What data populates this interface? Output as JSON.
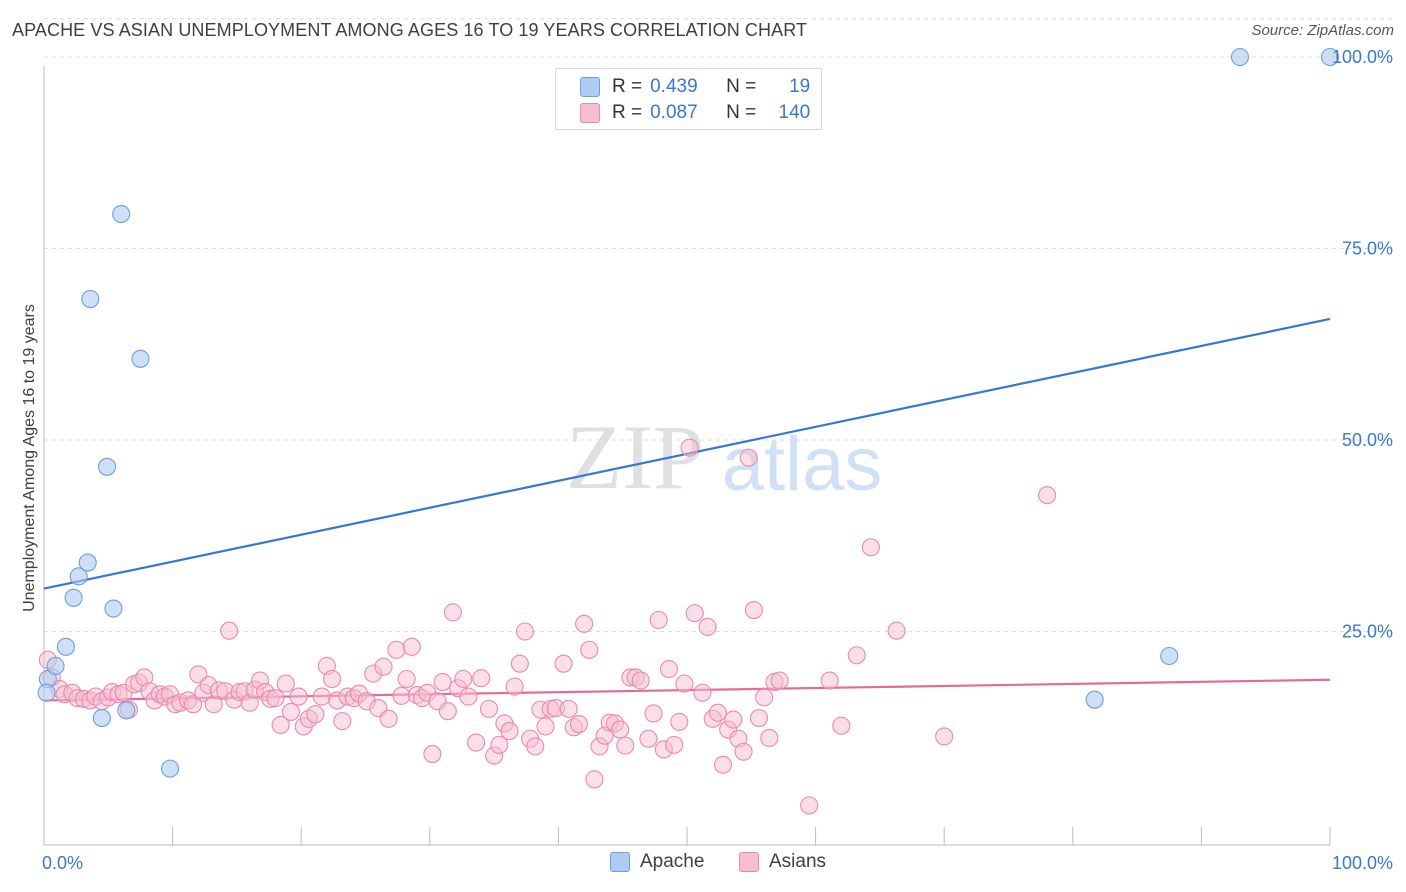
{
  "title": "APACHE VS ASIAN UNEMPLOYMENT AMONG AGES 16 TO 19 YEARS CORRELATION CHART",
  "source": "Source: ZipAtlas.com",
  "watermark": {
    "zip": "ZIP",
    "atlas": "atlas"
  },
  "legend_top": {
    "rows": [
      {
        "r_label": "R =",
        "r_value": "0.439",
        "n_label": "N =",
        "n_value": "19"
      },
      {
        "r_label": "R =",
        "r_value": "0.087",
        "n_label": "N =",
        "n_value": "140"
      }
    ]
  },
  "legend_bottom": {
    "apache": "Apache",
    "asians": "Asians"
  },
  "colors": {
    "apache_fill": "#aecbf2",
    "apache_stroke": "#6d9fdc",
    "apache_line": "#3677d4",
    "asians_fill": "#f7bdd0",
    "asians_stroke": "#e98aac",
    "asians_line": "#e56b97",
    "axis_label": "#3a78c9",
    "grid": "#dadce0"
  },
  "chart_data": {
    "type": "scatter",
    "title": "APACHE VS ASIAN UNEMPLOYMENT AMONG AGES 16 TO 19 YEARS CORRELATION CHART",
    "xlabel": "",
    "ylabel": "Unemployment Among Ages 16 to 19 years",
    "xlim": [
      0,
      100
    ],
    "ylim": [
      0,
      105
    ],
    "x_tick_labels": [
      "0.0%",
      "100.0%"
    ],
    "y_ticks": [
      25,
      50,
      75,
      100
    ],
    "y_tick_labels": [
      "25.0%",
      "50.0%",
      "75.0%",
      "100.0%"
    ],
    "grid": true,
    "legend_position": "top-center",
    "series": [
      {
        "name": "Apache",
        "r": 0.439,
        "n": 19,
        "trend": {
          "x": [
            0,
            100
          ],
          "y": [
            30.6,
            65.8
          ]
        },
        "points": [
          [
            0.3,
            18.8
          ],
          [
            0.9,
            20.5
          ],
          [
            1.7,
            23.0
          ],
          [
            2.3,
            29.4
          ],
          [
            2.7,
            32.2
          ],
          [
            3.4,
            34.0
          ],
          [
            3.6,
            68.4
          ],
          [
            4.5,
            13.7
          ],
          [
            4.9,
            46.5
          ],
          [
            5.4,
            28.0
          ],
          [
            6.0,
            79.5
          ],
          [
            6.4,
            14.7
          ],
          [
            7.5,
            60.6
          ],
          [
            9.8,
            7.1
          ],
          [
            81.7,
            16.1
          ],
          [
            87.5,
            21.8
          ],
          [
            93.0,
            100.0
          ],
          [
            100.0,
            100.0
          ],
          [
            0.2,
            17.0
          ]
        ]
      },
      {
        "name": "Asians",
        "r": 0.087,
        "n": 140,
        "trend": {
          "x": [
            0,
            100
          ],
          "y": [
            16.0,
            18.7
          ]
        },
        "points": [
          [
            0.3,
            21.3
          ],
          [
            0.6,
            19.0
          ],
          [
            1.2,
            17.5
          ],
          [
            1.6,
            16.8
          ],
          [
            2.2,
            17.0
          ],
          [
            2.6,
            16.3
          ],
          [
            3.1,
            16.2
          ],
          [
            3.6,
            16.0
          ],
          [
            4.0,
            16.5
          ],
          [
            4.5,
            15.9
          ],
          [
            5.0,
            16.4
          ],
          [
            5.3,
            17.1
          ],
          [
            5.8,
            16.8
          ],
          [
            6.2,
            17.0
          ],
          [
            6.6,
            14.8
          ],
          [
            7.0,
            18.1
          ],
          [
            7.4,
            18.3
          ],
          [
            7.8,
            19.0
          ],
          [
            8.2,
            17.2
          ],
          [
            8.6,
            16.0
          ],
          [
            9.0,
            16.8
          ],
          [
            9.4,
            16.5
          ],
          [
            9.8,
            16.8
          ],
          [
            10.2,
            15.5
          ],
          [
            10.6,
            15.7
          ],
          [
            11.2,
            16.0
          ],
          [
            11.6,
            15.5
          ],
          [
            12.0,
            19.4
          ],
          [
            12.4,
            17.0
          ],
          [
            12.8,
            18.0
          ],
          [
            13.2,
            15.5
          ],
          [
            13.6,
            17.3
          ],
          [
            14.1,
            17.2
          ],
          [
            14.4,
            25.1
          ],
          [
            14.8,
            16.1
          ],
          [
            15.2,
            17.1
          ],
          [
            15.6,
            17.2
          ],
          [
            16.0,
            15.7
          ],
          [
            16.4,
            17.4
          ],
          [
            16.8,
            18.6
          ],
          [
            17.2,
            17.1
          ],
          [
            17.6,
            16.2
          ],
          [
            18.0,
            16.3
          ],
          [
            18.4,
            12.8
          ],
          [
            18.8,
            18.2
          ],
          [
            19.2,
            14.5
          ],
          [
            19.8,
            16.5
          ],
          [
            20.2,
            12.6
          ],
          [
            20.6,
            13.6
          ],
          [
            21.1,
            14.2
          ],
          [
            21.6,
            16.5
          ],
          [
            22.0,
            20.5
          ],
          [
            22.4,
            18.8
          ],
          [
            22.8,
            16.0
          ],
          [
            23.2,
            13.3
          ],
          [
            23.6,
            16.5
          ],
          [
            24.1,
            16.3
          ],
          [
            24.5,
            16.9
          ],
          [
            25.1,
            15.9
          ],
          [
            25.6,
            19.5
          ],
          [
            26.0,
            15.0
          ],
          [
            26.4,
            20.4
          ],
          [
            26.8,
            13.6
          ],
          [
            27.4,
            22.6
          ],
          [
            27.8,
            16.6
          ],
          [
            28.2,
            18.8
          ],
          [
            28.6,
            23.0
          ],
          [
            29.0,
            16.7
          ],
          [
            29.4,
            16.3
          ],
          [
            29.8,
            17.0
          ],
          [
            30.2,
            9.0
          ],
          [
            30.6,
            15.9
          ],
          [
            31.0,
            18.4
          ],
          [
            31.4,
            14.6
          ],
          [
            31.8,
            27.5
          ],
          [
            32.2,
            17.6
          ],
          [
            32.6,
            18.8
          ],
          [
            33.0,
            16.5
          ],
          [
            33.6,
            10.5
          ],
          [
            34.0,
            18.9
          ],
          [
            34.6,
            14.9
          ],
          [
            35.0,
            8.8
          ],
          [
            35.4,
            10.2
          ],
          [
            35.8,
            13.0
          ],
          [
            36.2,
            12.0
          ],
          [
            36.6,
            17.8
          ],
          [
            37.0,
            20.8
          ],
          [
            37.4,
            25.0
          ],
          [
            37.8,
            11.0
          ],
          [
            38.2,
            10.0
          ],
          [
            38.6,
            14.8
          ],
          [
            39.0,
            12.6
          ],
          [
            39.4,
            14.9
          ],
          [
            39.8,
            15.0
          ],
          [
            40.4,
            20.8
          ],
          [
            40.8,
            14.9
          ],
          [
            41.2,
            12.5
          ],
          [
            41.6,
            12.9
          ],
          [
            42.0,
            26.0
          ],
          [
            42.4,
            22.6
          ],
          [
            42.8,
            5.7
          ],
          [
            43.2,
            10.0
          ],
          [
            43.6,
            11.4
          ],
          [
            44.0,
            13.1
          ],
          [
            44.4,
            13.0
          ],
          [
            44.8,
            12.2
          ],
          [
            45.2,
            10.1
          ],
          [
            45.6,
            19.0
          ],
          [
            46.0,
            19.0
          ],
          [
            46.4,
            18.6
          ],
          [
            47.0,
            11.0
          ],
          [
            47.4,
            14.3
          ],
          [
            47.8,
            26.5
          ],
          [
            48.2,
            9.6
          ],
          [
            48.6,
            20.1
          ],
          [
            49.0,
            10.2
          ],
          [
            49.4,
            13.2
          ],
          [
            49.8,
            18.2
          ],
          [
            50.2,
            49.0
          ],
          [
            50.6,
            27.4
          ],
          [
            51.2,
            17.0
          ],
          [
            51.6,
            25.6
          ],
          [
            52.0,
            13.6
          ],
          [
            52.4,
            14.4
          ],
          [
            52.8,
            7.6
          ],
          [
            53.2,
            12.2
          ],
          [
            53.6,
            13.5
          ],
          [
            54.0,
            11.0
          ],
          [
            54.4,
            9.3
          ],
          [
            54.8,
            47.7
          ],
          [
            55.2,
            27.8
          ],
          [
            55.6,
            13.7
          ],
          [
            56.0,
            16.4
          ],
          [
            56.4,
            11.1
          ],
          [
            56.8,
            18.4
          ],
          [
            57.2,
            18.6
          ],
          [
            59.5,
            2.3
          ],
          [
            61.1,
            18.6
          ],
          [
            62.0,
            12.7
          ],
          [
            63.2,
            21.9
          ],
          [
            64.3,
            36.0
          ],
          [
            66.3,
            25.1
          ],
          [
            70.0,
            11.3
          ],
          [
            78.0,
            42.8
          ]
        ]
      }
    ]
  }
}
